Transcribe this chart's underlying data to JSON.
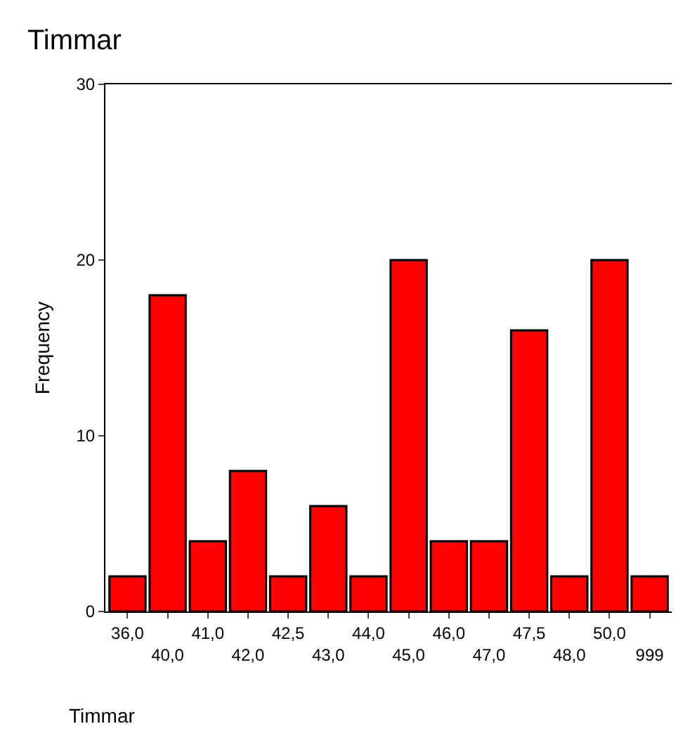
{
  "chart_data": {
    "type": "bar",
    "title": "Timmar",
    "xlabel": "Timmar",
    "ylabel": "Frequency",
    "categories": [
      "36,0",
      "40,0",
      "41,0",
      "42,0",
      "42,5",
      "43,0",
      "44,0",
      "45,0",
      "46,0",
      "47,0",
      "47,5",
      "48,0",
      "50,0",
      "999"
    ],
    "values": [
      2,
      18,
      4,
      8,
      2,
      6,
      2,
      20,
      4,
      4,
      16,
      2,
      20,
      2
    ],
    "color": "#ff0000",
    "ylim": [
      0,
      30
    ],
    "yticks": [
      0,
      10,
      20,
      30
    ]
  }
}
